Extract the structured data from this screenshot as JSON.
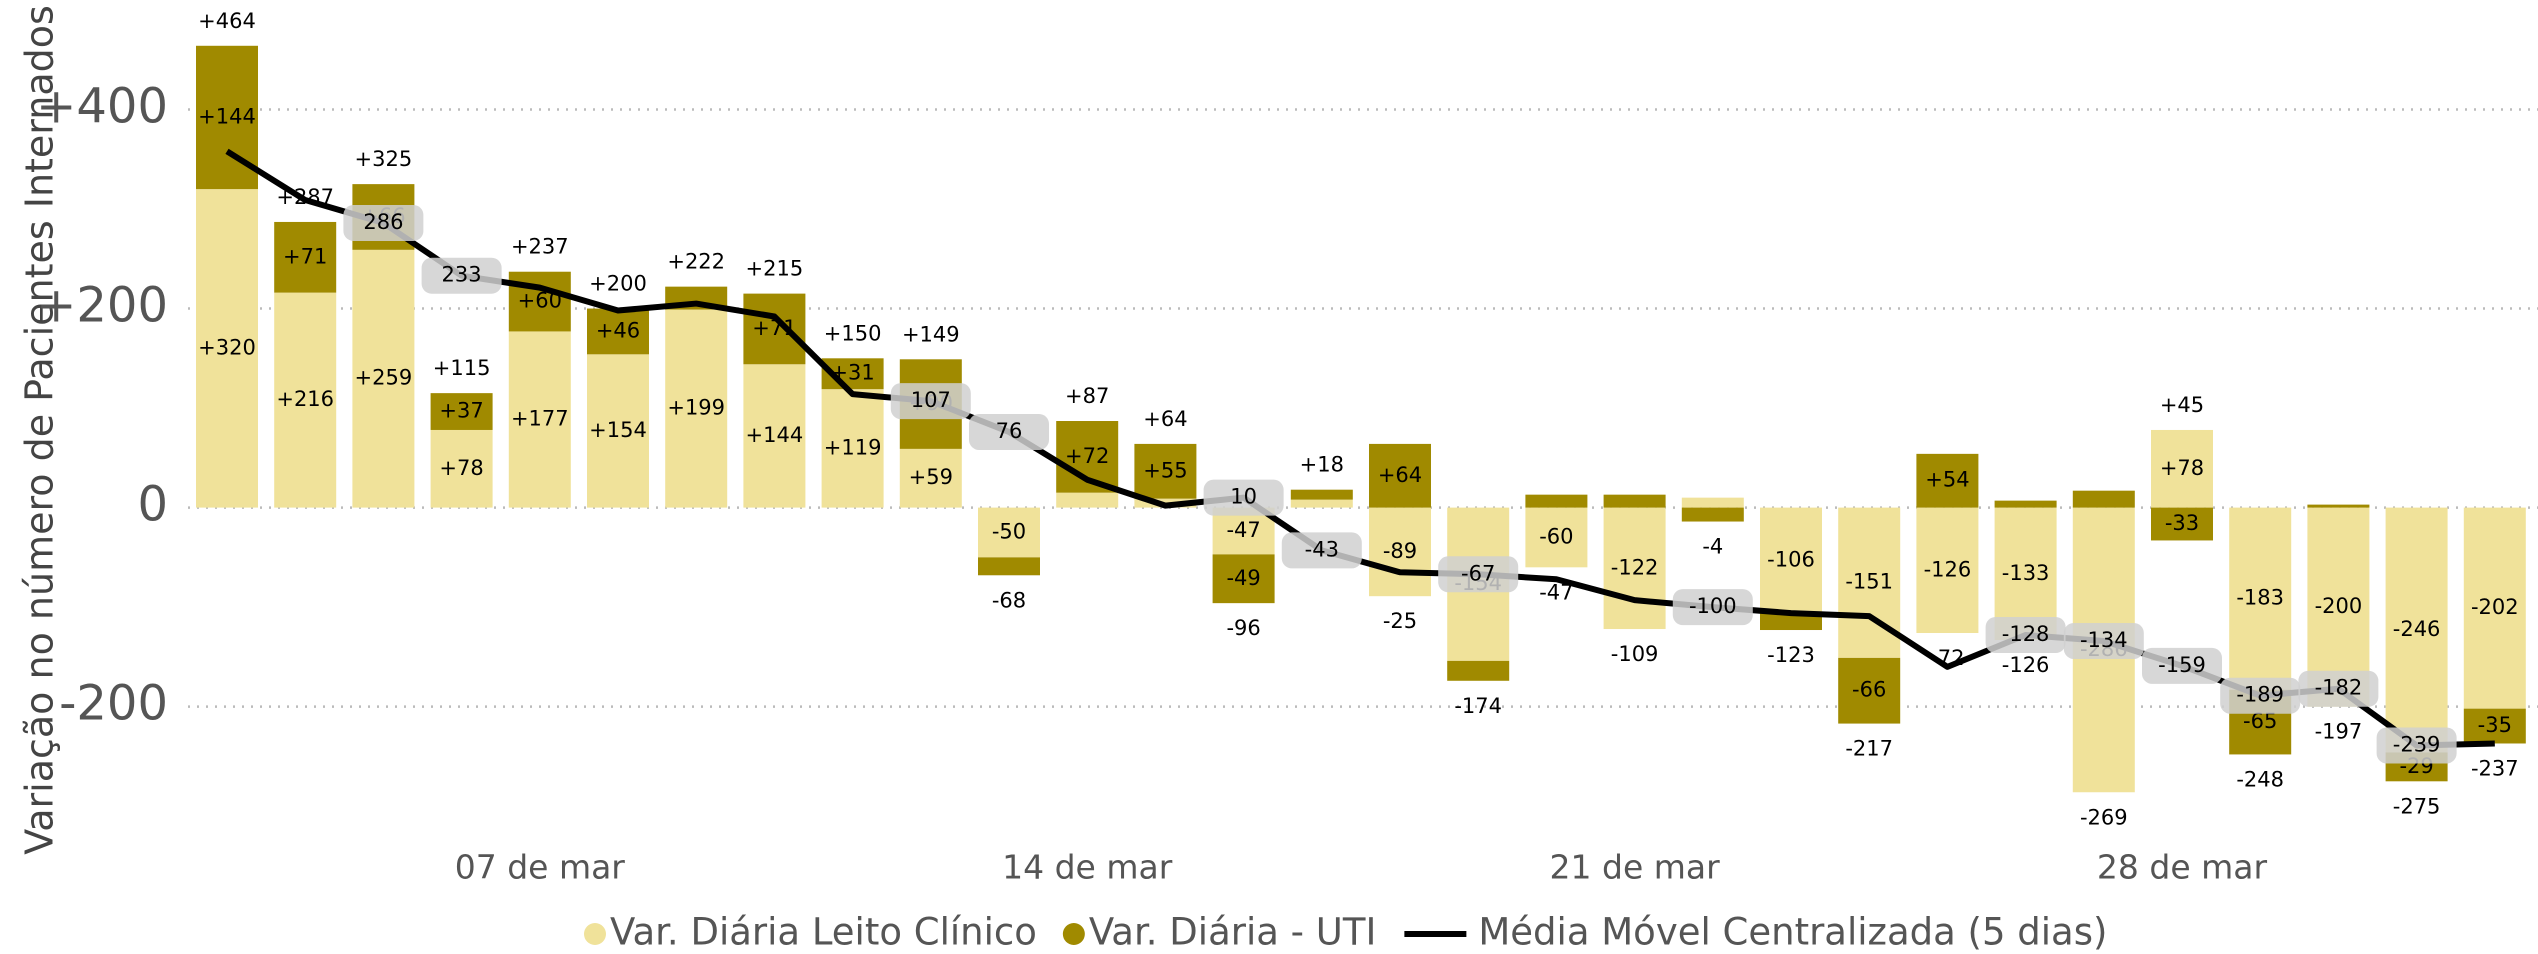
{
  "chart_data": {
    "type": "bar",
    "y_label": "Variação no número de Pacientes Internados",
    "categories": [
      null,
      null,
      null,
      null,
      "07 de mar",
      null,
      null,
      null,
      null,
      null,
      null,
      "14 de mar",
      null,
      null,
      null,
      null,
      null,
      null,
      "21 de mar",
      null,
      null,
      null,
      null,
      null,
      null,
      "28 de mar",
      null,
      null,
      null,
      null
    ],
    "ylim": [
      -340,
      510
    ],
    "yticks": [
      {
        "value": 400,
        "label": "+400"
      },
      {
        "value": 200,
        "label": "+200"
      },
      0,
      -200
    ],
    "grid": true,
    "legend": "bottom",
    "series": [
      {
        "name": "Var. Diária Leito Clínico",
        "color": "#f0e29a",
        "values": [
          320,
          216,
          259,
          78,
          177,
          154,
          199,
          144,
          119,
          59,
          -50,
          15,
          9,
          -47,
          8,
          -89,
          -154,
          -60,
          -122,
          10,
          -106,
          -151,
          -126,
          -133,
          -286,
          78,
          -183,
          -200,
          -246,
          -202
        ],
        "value_labels": [
          "+320",
          "+216",
          "+259",
          "+78",
          "+177",
          "+154",
          "+199",
          "+144",
          "+119",
          "+59",
          "-50",
          null,
          null,
          "-47",
          null,
          "-89",
          "-154",
          "-60",
          "-122",
          null,
          "-106",
          "-151",
          "-126",
          "-133",
          "-286",
          "+78",
          "-183",
          "-200",
          "-246",
          "-202"
        ]
      },
      {
        "name": "Var. Diária - UTI",
        "color": "#a08a00",
        "values": [
          144,
          71,
          66,
          37,
          60,
          46,
          23,
          71,
          31,
          90,
          -18,
          72,
          55,
          -49,
          10,
          64,
          -20,
          13,
          13,
          -14,
          -17,
          -66,
          54,
          7,
          17,
          -33,
          -65,
          3,
          -29,
          -35
        ],
        "value_labels": [
          "+144",
          "+71",
          "+66",
          "+37",
          "+60",
          "+46",
          null,
          "+71",
          "+31",
          "+90",
          null,
          "+72",
          "+55",
          "-49",
          null,
          "+64",
          null,
          null,
          null,
          null,
          null,
          "-66",
          "+54",
          null,
          null,
          "-33",
          "-65",
          null,
          "-29",
          "-35"
        ]
      },
      {
        "name": "Média Móvel Centralizada (5 dias)",
        "type": "line",
        "color": "#000000",
        "values": [
          358,
          309,
          286,
          233,
          221,
          198,
          205,
          192,
          114,
          107,
          76,
          28,
          2,
          10,
          -43,
          -65,
          -67,
          -72,
          -93,
          -100,
          -106,
          -109,
          -160,
          -128,
          -134,
          -159,
          -189,
          -182,
          -239,
          -237
        ],
        "value_labels": [
          null,
          null,
          "286",
          "233",
          null,
          null,
          null,
          null,
          null,
          "107",
          "76",
          null,
          null,
          "10",
          "-43",
          null,
          "-67",
          null,
          null,
          "-100",
          null,
          null,
          null,
          "-128",
          "-134",
          "-159",
          "-189",
          "-182",
          "-239",
          null
        ]
      }
    ],
    "totals": {
      "values": [
        464,
        287,
        325,
        115,
        237,
        200,
        222,
        215,
        150,
        149,
        -68,
        87,
        64,
        -96,
        18,
        -25,
        -174,
        -47,
        -109,
        -4,
        -123,
        -217,
        -72,
        -126,
        -269,
        45,
        -248,
        -197,
        -275,
        -237
      ],
      "value_labels": [
        "+464",
        "+287",
        "+325",
        "+115",
        "+237",
        "+200",
        "+222",
        "+215",
        "+150",
        "+149",
        "-68",
        "+87",
        "+64",
        "-96",
        "+18",
        "-25",
        "-174",
        "-47",
        "-109",
        "-4",
        "-123",
        "-217",
        "-72",
        "-126",
        "-269",
        "+45",
        "-248",
        "-197",
        "-275",
        "-237"
      ]
    }
  }
}
